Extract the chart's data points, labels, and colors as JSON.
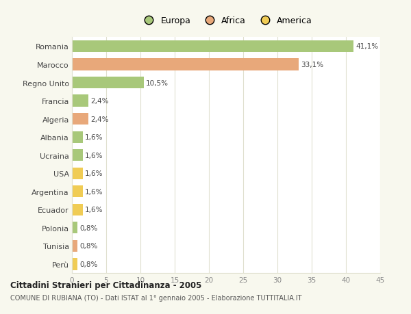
{
  "categories": [
    "Romania",
    "Marocco",
    "Regno Unito",
    "Francia",
    "Algeria",
    "Albania",
    "Ucraina",
    "USA",
    "Argentina",
    "Ecuador",
    "Polonia",
    "Tunisia",
    "Perù"
  ],
  "values": [
    41.1,
    33.1,
    10.5,
    2.4,
    2.4,
    1.6,
    1.6,
    1.6,
    1.6,
    1.6,
    0.8,
    0.8,
    0.8
  ],
  "labels": [
    "41,1%",
    "33,1%",
    "10,5%",
    "2,4%",
    "2,4%",
    "1,6%",
    "1,6%",
    "1,6%",
    "1,6%",
    "1,6%",
    "0,8%",
    "0,8%",
    "0,8%"
  ],
  "colors": [
    "#a8c87a",
    "#e8a87a",
    "#a8c87a",
    "#a8c87a",
    "#e8a87a",
    "#a8c87a",
    "#a8c87a",
    "#f0cc55",
    "#f0cc55",
    "#f0cc55",
    "#a8c87a",
    "#e8a87a",
    "#f0cc55"
  ],
  "legend_labels": [
    "Europa",
    "Africa",
    "America"
  ],
  "legend_colors": [
    "#a8c87a",
    "#e8a87a",
    "#f0cc55"
  ],
  "title": "Cittadini Stranieri per Cittadinanza - 2005",
  "subtitle": "COMUNE DI RUBIANA (TO) - Dati ISTAT al 1° gennaio 2005 - Elaborazione TUTTITALIA.IT",
  "xlim": [
    0,
    45
  ],
  "xticks": [
    0,
    5,
    10,
    15,
    20,
    25,
    30,
    35,
    40,
    45
  ],
  "background_color": "#f8f8ee",
  "plot_bg_color": "#ffffff",
  "grid_color": "#e0e0d0"
}
